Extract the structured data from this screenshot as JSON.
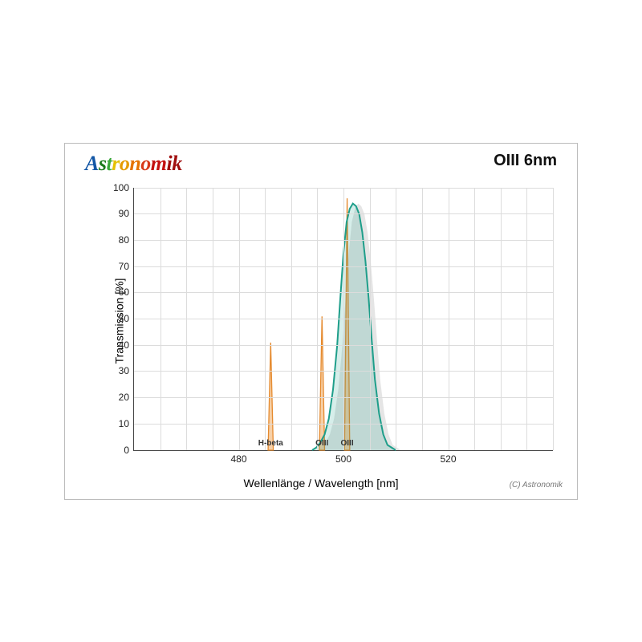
{
  "brand_text": "Astronomik",
  "brand_colors": [
    "#1357a6",
    "#1b7a1b",
    "#3aa83a",
    "#e5c100",
    "#e59b00",
    "#e57300",
    "#d83a1a",
    "#c41111",
    "#a00f0f"
  ],
  "filter_name": "OIII 6nm",
  "ylabel": "Transmission [%]",
  "xlabel": "Wellenlänge / Wavelength [nm]",
  "copyright": "(C) Astronomik",
  "chart": {
    "type": "line",
    "xlim": [
      460,
      540
    ],
    "ylim": [
      0,
      100
    ],
    "ytick_step": 10,
    "xticks": [
      480,
      500,
      520
    ],
    "minor_v_every_nm": 5,
    "grid_color": "#dcdcdc",
    "axis_color": "#444444",
    "background_color": "#ffffff",
    "emission_peaks": [
      {
        "label": "H-beta",
        "x": 486.1,
        "height": 41,
        "fill": "#f4c08a",
        "stroke": "#e58a2e",
        "width_nm": 1.0
      },
      {
        "label": "OIII",
        "x": 495.9,
        "height": 51,
        "fill": "#f4c08a",
        "stroke": "#e58a2e",
        "width_nm": 1.0
      },
      {
        "label": "OIII",
        "x": 500.7,
        "height": 96,
        "fill": "#f4c08a",
        "stroke": "#e58a2e",
        "width_nm": 1.0
      }
    ],
    "filter_curve": {
      "fill": "#1e9e8a",
      "fill_opacity": 0.18,
      "stroke": "#1e9e8a",
      "stroke_width": 2,
      "points": [
        [
          494.0,
          0
        ],
        [
          494.8,
          1
        ],
        [
          495.6,
          3
        ],
        [
          496.4,
          6
        ],
        [
          497.2,
          12
        ],
        [
          498.0,
          23
        ],
        [
          498.8,
          40
        ],
        [
          499.4,
          58
        ],
        [
          500.0,
          75
        ],
        [
          500.6,
          87
        ],
        [
          501.2,
          92
        ],
        [
          501.8,
          94
        ],
        [
          502.4,
          93
        ],
        [
          503.0,
          90
        ],
        [
          503.6,
          83
        ],
        [
          504.2,
          72
        ],
        [
          504.8,
          58
        ],
        [
          505.4,
          42
        ],
        [
          506.0,
          27
        ],
        [
          506.8,
          14
        ],
        [
          507.6,
          6
        ],
        [
          508.4,
          2
        ],
        [
          509.2,
          1
        ],
        [
          510.0,
          0
        ]
      ]
    },
    "filter_shadow": {
      "fill": "#cfcfcf",
      "fill_opacity": 0.55,
      "points": [
        [
          495.0,
          0
        ],
        [
          495.8,
          1
        ],
        [
          496.6,
          3
        ],
        [
          497.4,
          6
        ],
        [
          498.2,
          12
        ],
        [
          499.0,
          23
        ],
        [
          499.8,
          40
        ],
        [
          500.4,
          58
        ],
        [
          501.0,
          75
        ],
        [
          501.6,
          87
        ],
        [
          502.2,
          92
        ],
        [
          502.8,
          94
        ],
        [
          503.4,
          93
        ],
        [
          504.0,
          90
        ],
        [
          504.6,
          83
        ],
        [
          505.2,
          72
        ],
        [
          505.8,
          58
        ],
        [
          506.4,
          42
        ],
        [
          507.0,
          27
        ],
        [
          507.8,
          14
        ],
        [
          508.6,
          6
        ],
        [
          509.4,
          2
        ],
        [
          510.2,
          1
        ],
        [
          511.0,
          0
        ]
      ]
    }
  }
}
